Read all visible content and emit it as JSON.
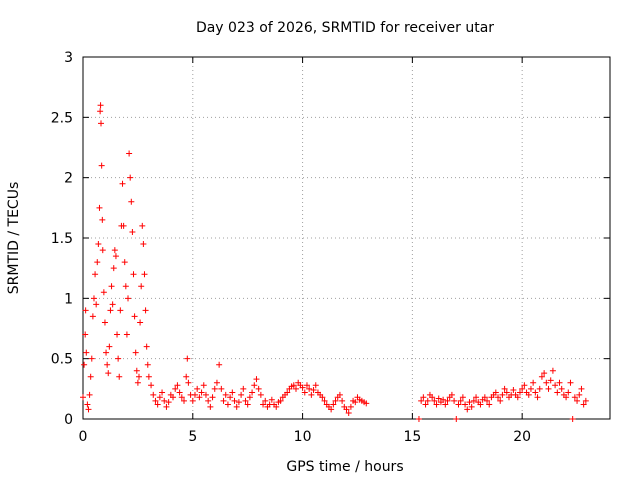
{
  "chart_data": {
    "type": "scatter",
    "title": "Day 023 of 2026, SRMTID for receiver utar",
    "xlabel": "GPS time / hours",
    "ylabel": "SRMTID / TECUs",
    "xlim": [
      0,
      24
    ],
    "ylim": [
      0,
      3
    ],
    "x_ticks": [
      0,
      5,
      10,
      15,
      20
    ],
    "x_tick_labels": [
      "0",
      "5",
      "10",
      "15",
      "20"
    ],
    "y_ticks": [
      0,
      0.5,
      1,
      1.5,
      2,
      2.5,
      3
    ],
    "y_tick_labels": [
      "0",
      "0.5",
      "1",
      "1.5",
      "2",
      "2.5",
      "3"
    ],
    "grid": true,
    "marker": "+",
    "color": "#ff0000",
    "data_gap_hours": [
      13.0,
      15.3
    ],
    "series": [
      {
        "name": "SRMTID",
        "points": [
          [
            0.0,
            0.18
          ],
          [
            0.05,
            0.45
          ],
          [
            0.1,
            0.7
          ],
          [
            0.12,
            0.9
          ],
          [
            0.15,
            0.55
          ],
          [
            0.2,
            0.12
          ],
          [
            0.25,
            0.08
          ],
          [
            0.3,
            0.2
          ],
          [
            0.35,
            0.35
          ],
          [
            0.4,
            0.5
          ],
          [
            0.45,
            0.85
          ],
          [
            0.5,
            1.0
          ],
          [
            0.55,
            1.2
          ],
          [
            0.6,
            0.95
          ],
          [
            0.65,
            1.3
          ],
          [
            0.7,
            1.45
          ],
          [
            0.75,
            1.75
          ],
          [
            0.78,
            2.55
          ],
          [
            0.8,
            2.6
          ],
          [
            0.82,
            2.45
          ],
          [
            0.85,
            2.1
          ],
          [
            0.88,
            1.65
          ],
          [
            0.9,
            1.4
          ],
          [
            0.95,
            1.05
          ],
          [
            1.0,
            0.8
          ],
          [
            1.05,
            0.55
          ],
          [
            1.1,
            0.45
          ],
          [
            1.15,
            0.38
          ],
          [
            1.2,
            0.6
          ],
          [
            1.25,
            0.9
          ],
          [
            1.3,
            1.1
          ],
          [
            1.35,
            0.95
          ],
          [
            1.4,
            1.25
          ],
          [
            1.45,
            1.4
          ],
          [
            1.5,
            1.35
          ],
          [
            1.55,
            0.7
          ],
          [
            1.6,
            0.5
          ],
          [
            1.65,
            0.35
          ],
          [
            1.7,
            0.9
          ],
          [
            1.75,
            1.6
          ],
          [
            1.8,
            1.95
          ],
          [
            1.85,
            1.6
          ],
          [
            1.9,
            1.3
          ],
          [
            1.95,
            1.1
          ],
          [
            2.0,
            0.7
          ],
          [
            2.05,
            1.0
          ],
          [
            2.1,
            2.2
          ],
          [
            2.15,
            2.0
          ],
          [
            2.2,
            1.8
          ],
          [
            2.25,
            1.55
          ],
          [
            2.3,
            1.2
          ],
          [
            2.35,
            0.85
          ],
          [
            2.4,
            0.55
          ],
          [
            2.45,
            0.4
          ],
          [
            2.5,
            0.3
          ],
          [
            2.55,
            0.35
          ],
          [
            2.6,
            0.8
          ],
          [
            2.65,
            1.1
          ],
          [
            2.7,
            1.6
          ],
          [
            2.75,
            1.45
          ],
          [
            2.8,
            1.2
          ],
          [
            2.85,
            0.9
          ],
          [
            2.9,
            0.6
          ],
          [
            2.95,
            0.45
          ],
          [
            3.0,
            0.35
          ],
          [
            3.1,
            0.28
          ],
          [
            3.2,
            0.2
          ],
          [
            3.3,
            0.15
          ],
          [
            3.4,
            0.12
          ],
          [
            3.5,
            0.18
          ],
          [
            3.6,
            0.22
          ],
          [
            3.7,
            0.15
          ],
          [
            3.8,
            0.1
          ],
          [
            3.9,
            0.14
          ],
          [
            4.0,
            0.2
          ],
          [
            4.1,
            0.18
          ],
          [
            4.2,
            0.25
          ],
          [
            4.3,
            0.28
          ],
          [
            4.4,
            0.22
          ],
          [
            4.5,
            0.18
          ],
          [
            4.6,
            0.15
          ],
          [
            4.7,
            0.35
          ],
          [
            4.75,
            0.5
          ],
          [
            4.8,
            0.3
          ],
          [
            4.9,
            0.2
          ],
          [
            5.0,
            0.15
          ],
          [
            5.1,
            0.2
          ],
          [
            5.2,
            0.25
          ],
          [
            5.3,
            0.18
          ],
          [
            5.4,
            0.22
          ],
          [
            5.5,
            0.28
          ],
          [
            5.6,
            0.2
          ],
          [
            5.7,
            0.15
          ],
          [
            5.8,
            0.1
          ],
          [
            5.9,
            0.18
          ],
          [
            6.0,
            0.25
          ],
          [
            6.1,
            0.3
          ],
          [
            6.2,
            0.45
          ],
          [
            6.3,
            0.25
          ],
          [
            6.4,
            0.15
          ],
          [
            6.5,
            0.2
          ],
          [
            6.6,
            0.12
          ],
          [
            6.7,
            0.18
          ],
          [
            6.8,
            0.22
          ],
          [
            6.9,
            0.15
          ],
          [
            7.0,
            0.1
          ],
          [
            7.1,
            0.14
          ],
          [
            7.2,
            0.2
          ],
          [
            7.3,
            0.25
          ],
          [
            7.4,
            0.15
          ],
          [
            7.5,
            0.12
          ],
          [
            7.6,
            0.18
          ],
          [
            7.7,
            0.22
          ],
          [
            7.8,
            0.28
          ],
          [
            7.9,
            0.33
          ],
          [
            8.0,
            0.25
          ],
          [
            8.1,
            0.2
          ],
          [
            8.2,
            0.12
          ],
          [
            8.3,
            0.15
          ],
          [
            8.4,
            0.1
          ],
          [
            8.5,
            0.12
          ],
          [
            8.6,
            0.16
          ],
          [
            8.7,
            0.12
          ],
          [
            8.8,
            0.1
          ],
          [
            8.9,
            0.14
          ],
          [
            9.0,
            0.15
          ],
          [
            9.1,
            0.18
          ],
          [
            9.2,
            0.2
          ],
          [
            9.3,
            0.22
          ],
          [
            9.4,
            0.25
          ],
          [
            9.5,
            0.27
          ],
          [
            9.6,
            0.28
          ],
          [
            9.7,
            0.25
          ],
          [
            9.8,
            0.3
          ],
          [
            9.9,
            0.28
          ],
          [
            10.0,
            0.26
          ],
          [
            10.1,
            0.22
          ],
          [
            10.2,
            0.28
          ],
          [
            10.3,
            0.25
          ],
          [
            10.4,
            0.2
          ],
          [
            10.5,
            0.24
          ],
          [
            10.6,
            0.28
          ],
          [
            10.7,
            0.22
          ],
          [
            10.8,
            0.2
          ],
          [
            10.9,
            0.18
          ],
          [
            11.0,
            0.15
          ],
          [
            11.1,
            0.12
          ],
          [
            11.2,
            0.1
          ],
          [
            11.3,
            0.08
          ],
          [
            11.4,
            0.12
          ],
          [
            11.5,
            0.15
          ],
          [
            11.6,
            0.18
          ],
          [
            11.7,
            0.2
          ],
          [
            11.8,
            0.15
          ],
          [
            11.9,
            0.1
          ],
          [
            12.0,
            0.08
          ],
          [
            12.1,
            0.05
          ],
          [
            12.2,
            0.1
          ],
          [
            12.3,
            0.15
          ],
          [
            12.4,
            0.14
          ],
          [
            12.5,
            0.18
          ],
          [
            12.6,
            0.16
          ],
          [
            12.7,
            0.15
          ],
          [
            12.8,
            0.14
          ],
          [
            12.9,
            0.13
          ],
          [
            15.3,
            0.0
          ],
          [
            15.4,
            0.15
          ],
          [
            15.5,
            0.18
          ],
          [
            15.6,
            0.12
          ],
          [
            15.7,
            0.15
          ],
          [
            15.8,
            0.2
          ],
          [
            15.9,
            0.18
          ],
          [
            16.0,
            0.15
          ],
          [
            16.1,
            0.12
          ],
          [
            16.2,
            0.17
          ],
          [
            16.3,
            0.14
          ],
          [
            16.4,
            0.16
          ],
          [
            16.5,
            0.12
          ],
          [
            16.6,
            0.15
          ],
          [
            16.7,
            0.18
          ],
          [
            16.8,
            0.2
          ],
          [
            16.9,
            0.15
          ],
          [
            17.0,
            0.0
          ],
          [
            17.1,
            0.12
          ],
          [
            17.2,
            0.15
          ],
          [
            17.3,
            0.18
          ],
          [
            17.4,
            0.12
          ],
          [
            17.5,
            0.08
          ],
          [
            17.6,
            0.14
          ],
          [
            17.7,
            0.1
          ],
          [
            17.8,
            0.15
          ],
          [
            17.9,
            0.18
          ],
          [
            18.0,
            0.14
          ],
          [
            18.1,
            0.12
          ],
          [
            18.2,
            0.16
          ],
          [
            18.3,
            0.18
          ],
          [
            18.4,
            0.15
          ],
          [
            18.5,
            0.12
          ],
          [
            18.6,
            0.18
          ],
          [
            18.7,
            0.2
          ],
          [
            18.8,
            0.22
          ],
          [
            18.9,
            0.18
          ],
          [
            19.0,
            0.15
          ],
          [
            19.1,
            0.2
          ],
          [
            19.2,
            0.25
          ],
          [
            19.3,
            0.22
          ],
          [
            19.4,
            0.18
          ],
          [
            19.5,
            0.2
          ],
          [
            19.6,
            0.24
          ],
          [
            19.7,
            0.2
          ],
          [
            19.8,
            0.18
          ],
          [
            19.9,
            0.22
          ],
          [
            20.0,
            0.25
          ],
          [
            20.1,
            0.28
          ],
          [
            20.2,
            0.22
          ],
          [
            20.3,
            0.2
          ],
          [
            20.4,
            0.25
          ],
          [
            20.5,
            0.3
          ],
          [
            20.6,
            0.22
          ],
          [
            20.7,
            0.18
          ],
          [
            20.8,
            0.25
          ],
          [
            20.9,
            0.35
          ],
          [
            21.0,
            0.38
          ],
          [
            21.1,
            0.3
          ],
          [
            21.2,
            0.25
          ],
          [
            21.3,
            0.32
          ],
          [
            21.4,
            0.4
          ],
          [
            21.5,
            0.28
          ],
          [
            21.6,
            0.22
          ],
          [
            21.7,
            0.3
          ],
          [
            21.8,
            0.25
          ],
          [
            21.9,
            0.2
          ],
          [
            22.0,
            0.18
          ],
          [
            22.1,
            0.22
          ],
          [
            22.2,
            0.3
          ],
          [
            22.3,
            0.0
          ],
          [
            22.4,
            0.18
          ],
          [
            22.5,
            0.15
          ],
          [
            22.6,
            0.2
          ],
          [
            22.7,
            0.25
          ],
          [
            22.8,
            0.12
          ],
          [
            22.9,
            0.15
          ]
        ]
      }
    ]
  }
}
